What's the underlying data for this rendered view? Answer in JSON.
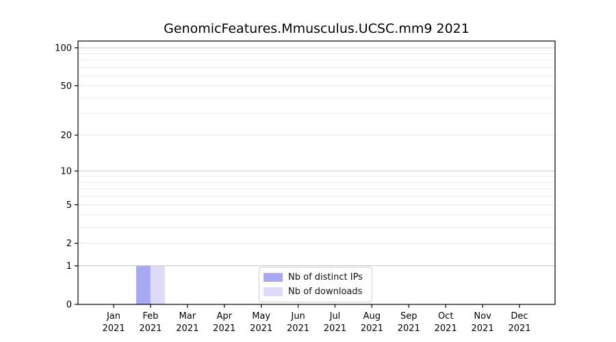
{
  "chart_data": {
    "type": "bar",
    "title": "GenomicFeatures.Mmusculus.UCSC.mm9 2021",
    "categories": [
      {
        "month": "Jan",
        "year": "2021"
      },
      {
        "month": "Feb",
        "year": "2021"
      },
      {
        "month": "Mar",
        "year": "2021"
      },
      {
        "month": "Apr",
        "year": "2021"
      },
      {
        "month": "May",
        "year": "2021"
      },
      {
        "month": "Jun",
        "year": "2021"
      },
      {
        "month": "Jul",
        "year": "2021"
      },
      {
        "month": "Aug",
        "year": "2021"
      },
      {
        "month": "Sep",
        "year": "2021"
      },
      {
        "month": "Oct",
        "year": "2021"
      },
      {
        "month": "Nov",
        "year": "2021"
      },
      {
        "month": "Dec",
        "year": "2021"
      }
    ],
    "series": [
      {
        "name": "Nb of distinct IPs",
        "color": "#a8a8f4",
        "values": [
          0,
          1,
          0,
          0,
          0,
          0,
          0,
          0,
          0,
          0,
          0,
          0
        ]
      },
      {
        "name": "Nb of downloads",
        "color": "#dcdcf8",
        "values": [
          0,
          1,
          0,
          0,
          0,
          0,
          0,
          0,
          0,
          0,
          0,
          0
        ]
      }
    ],
    "xlabel": "",
    "ylabel": "",
    "yscale": "log1p",
    "ylim": [
      0,
      113
    ],
    "y_ticks": [
      0,
      1,
      2,
      5,
      10,
      20,
      50,
      100
    ],
    "y_major_grid": [
      1,
      10,
      100
    ],
    "y_minor_grid": [
      2,
      3,
      4,
      5,
      6,
      7,
      8,
      9,
      20,
      30,
      40,
      50,
      60,
      70,
      80,
      90
    ],
    "grid": "on",
    "legend_position": "inside-bottom-center"
  },
  "colors": {
    "background": "#ffffff",
    "spine": "#000000",
    "major_grid": "#c6c6c6",
    "minor_grid": "#ebebeb",
    "tick": "#000000",
    "legend_border": "#cccccc"
  }
}
